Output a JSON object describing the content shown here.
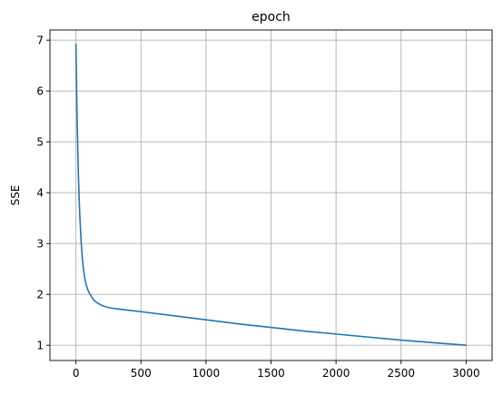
{
  "chart_data": {
    "type": "line",
    "title": "epoch",
    "xlabel": "",
    "ylabel": "SSE",
    "xlim": [
      -200,
      3200
    ],
    "ylim": [
      0.7,
      7.2
    ],
    "xticks": [
      0,
      500,
      1000,
      1500,
      2000,
      2500,
      3000
    ],
    "yticks": [
      1,
      2,
      3,
      4,
      5,
      6,
      7
    ],
    "grid": true,
    "legend": "none",
    "line_color": "#1f77b4",
    "series": [
      {
        "x": [
          0,
          5,
          10,
          15,
          20,
          25,
          30,
          40,
          50,
          60,
          70,
          80,
          90,
          100,
          120,
          140,
          160,
          180,
          200,
          250,
          300,
          400,
          500,
          750,
          1000,
          1250,
          1500,
          1750,
          2000,
          2250,
          2500,
          2750,
          3000
        ],
        "values": [
          6.92,
          6.06,
          5.34,
          4.75,
          4.26,
          3.86,
          3.53,
          3.03,
          2.68,
          2.45,
          2.29,
          2.18,
          2.1,
          2.04,
          1.95,
          1.88,
          1.84,
          1.81,
          1.78,
          1.74,
          1.72,
          1.69,
          1.66,
          1.58,
          1.5,
          1.42,
          1.35,
          1.28,
          1.22,
          1.16,
          1.1,
          1.05,
          1.0
        ]
      }
    ]
  }
}
